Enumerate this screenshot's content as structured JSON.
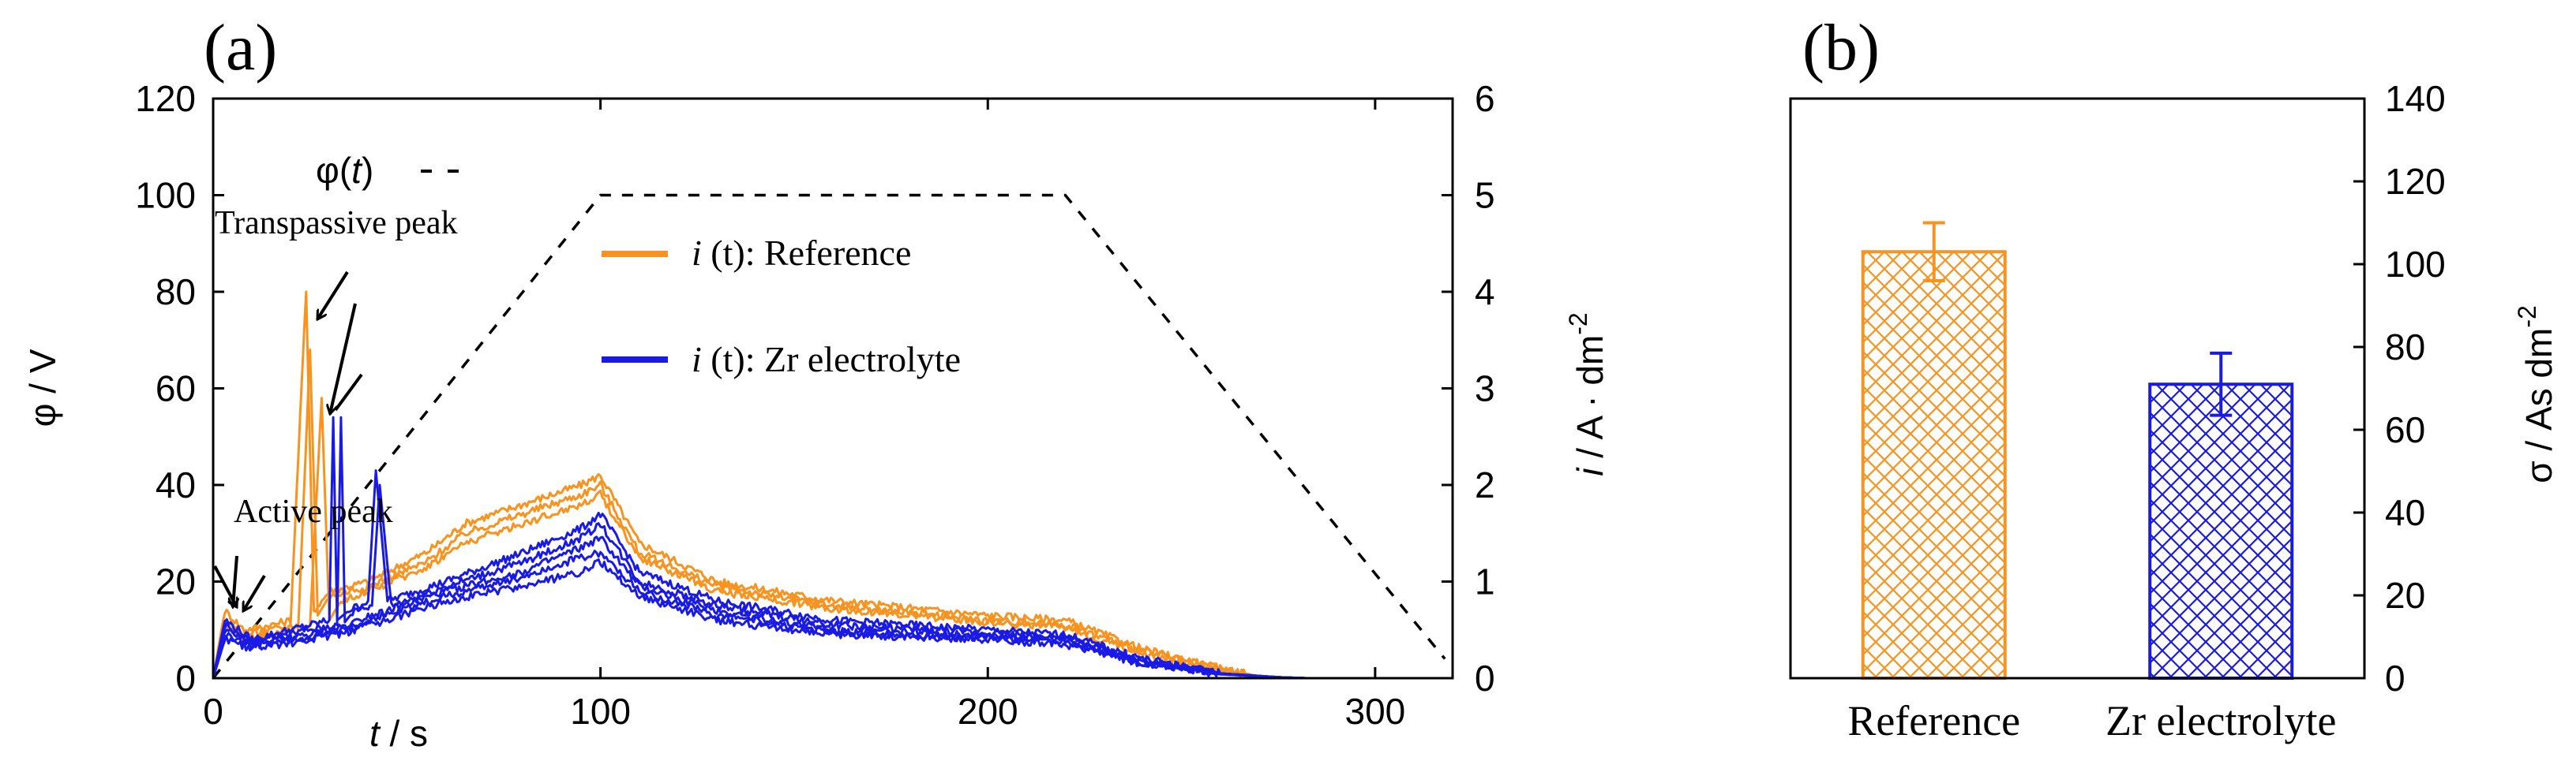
{
  "chart_data": [
    {
      "panel_label": "(a)",
      "type": "line",
      "xlabel_italic": "t",
      "xlabel_unit": " / s",
      "xlim": [
        0,
        320
      ],
      "xticks": [
        0,
        100,
        200,
        300
      ],
      "ylabel_left": "φ / V",
      "ylim_left": [
        0,
        120
      ],
      "yticks_left": [
        0,
        20,
        40,
        60,
        80,
        100,
        120
      ],
      "ylabel_right_italic": "i",
      "ylabel_right_unit": " / A · dm",
      "ylabel_right_exp": "-2",
      "ylim_right": [
        0,
        6
      ],
      "yticks_right": [
        0,
        1,
        2,
        3,
        4,
        5,
        6
      ],
      "legend": [
        {
          "label_prefix": "φ(",
          "label_italic": "t",
          "label_suffix": ")",
          "style": "dashed",
          "color": "#000000"
        },
        {
          "label_prefix": "i",
          "label_italic": " (t)",
          "label_suffix": ": Reference",
          "style": "solid",
          "color": "#F7931E"
        },
        {
          "label_prefix": "i",
          "label_italic": " (t)",
          "label_suffix": ": Zr electrolyte",
          "style": "solid",
          "color": "#1A1AE6"
        }
      ],
      "annotations": [
        "Transpassive peak",
        "Active peak"
      ],
      "series": [
        {
          "name": "φ(t)",
          "axis": "left",
          "style": "dashed",
          "color": "#000000",
          "x": [
            0,
            100,
            220,
            318
          ],
          "y": [
            0,
            100,
            100,
            4
          ]
        },
        {
          "name": "i (t): Reference",
          "axis": "right",
          "color": "#F7931E",
          "curves": [
            {
              "x": [
                0,
                3,
                8,
                15,
                20,
                24,
                26,
                30,
                40,
                55,
                65,
                80,
                95,
                100,
                110,
                130,
                160,
                200,
                220,
                240,
                260,
                270,
                280
              ],
              "y": [
                0,
                0.7,
                0.5,
                0.55,
                0.6,
                4.0,
                0.7,
                0.9,
                1.0,
                1.3,
                1.6,
                1.8,
                2.0,
                2.1,
                1.4,
                1.0,
                0.8,
                0.65,
                0.6,
                0.3,
                0.1,
                0.02,
                0
              ]
            },
            {
              "x": [
                0,
                3,
                8,
                15,
                22,
                25,
                27,
                30,
                40,
                55,
                65,
                80,
                95,
                100,
                110,
                130,
                160,
                200,
                220,
                240,
                260,
                270,
                280
              ],
              "y": [
                0,
                0.6,
                0.45,
                0.5,
                0.55,
                3.4,
                0.65,
                0.85,
                0.95,
                1.2,
                1.5,
                1.7,
                1.9,
                2.0,
                1.3,
                0.95,
                0.75,
                0.6,
                0.55,
                0.28,
                0.09,
                0.02,
                0
              ]
            },
            {
              "x": [
                0,
                3,
                8,
                15,
                25,
                28,
                30,
                33,
                40,
                55,
                65,
                80,
                95,
                100,
                110,
                130,
                160,
                200,
                220,
                240,
                260,
                270,
                280
              ],
              "y": [
                0,
                0.55,
                0.4,
                0.45,
                0.55,
                2.9,
                0.6,
                0.8,
                0.9,
                1.15,
                1.4,
                1.6,
                1.8,
                1.9,
                1.25,
                0.9,
                0.72,
                0.58,
                0.52,
                0.26,
                0.08,
                0.02,
                0
              ]
            }
          ]
        },
        {
          "name": "i (t): Zr electrolyte",
          "axis": "right",
          "color": "#1A1AE6",
          "curves": [
            {
              "x": [
                0,
                3,
                10,
                25,
                30,
                31,
                32,
                35,
                40,
                42,
                45,
                60,
                80,
                95,
                100,
                110,
                130,
                160,
                200,
                220,
                240,
                260,
                275,
                282
              ],
              "y": [
                0,
                0.6,
                0.4,
                0.55,
                0.6,
                2.7,
                0.6,
                0.7,
                0.8,
                2.15,
                0.8,
                1.0,
                1.3,
                1.55,
                1.7,
                1.1,
                0.8,
                0.6,
                0.5,
                0.45,
                0.2,
                0.05,
                0.01,
                0
              ]
            },
            {
              "x": [
                0,
                3,
                10,
                25,
                32,
                33,
                34,
                36,
                41,
                43,
                46,
                60,
                80,
                95,
                100,
                110,
                130,
                160,
                200,
                220,
                240,
                260,
                275,
                282
              ],
              "y": [
                0,
                0.55,
                0.38,
                0.5,
                0.55,
                2.7,
                0.58,
                0.68,
                0.75,
                2.0,
                0.75,
                0.95,
                1.2,
                1.45,
                1.6,
                1.0,
                0.75,
                0.55,
                0.47,
                0.42,
                0.18,
                0.05,
                0.01,
                0
              ]
            },
            {
              "x": [
                0,
                3,
                10,
                25,
                35,
                40,
                45,
                60,
                80,
                95,
                100,
                110,
                130,
                160,
                200,
                220,
                240,
                260,
                275,
                282
              ],
              "y": [
                0,
                0.5,
                0.35,
                0.45,
                0.55,
                0.65,
                0.7,
                0.9,
                1.1,
                1.35,
                1.45,
                0.95,
                0.7,
                0.5,
                0.45,
                0.4,
                0.17,
                0.05,
                0.01,
                0
              ]
            },
            {
              "x": [
                0,
                3,
                10,
                25,
                35,
                40,
                45,
                60,
                80,
                95,
                100,
                110,
                130,
                160,
                200,
                220,
                240,
                260,
                275,
                282
              ],
              "y": [
                0,
                0.45,
                0.33,
                0.42,
                0.5,
                0.6,
                0.66,
                0.85,
                1.05,
                1.25,
                1.3,
                0.9,
                0.65,
                0.48,
                0.42,
                0.38,
                0.16,
                0.04,
                0.01,
                0
              ]
            },
            {
              "x": [
                0,
                3,
                10,
                25,
                35,
                40,
                45,
                60,
                80,
                95,
                100,
                110,
                130,
                160,
                200,
                220,
                240,
                260,
                275,
                282
              ],
              "y": [
                0,
                0.4,
                0.3,
                0.4,
                0.48,
                0.55,
                0.6,
                0.8,
                0.95,
                1.1,
                1.2,
                0.85,
                0.6,
                0.45,
                0.4,
                0.35,
                0.15,
                0.04,
                0.01,
                0
              ]
            }
          ]
        }
      ]
    },
    {
      "panel_label": "(b)",
      "type": "bar",
      "categories": [
        "Reference",
        "Zr electrolyte"
      ],
      "values": [
        103,
        71
      ],
      "errors": [
        7,
        7.5
      ],
      "colors": [
        "#F7931E",
        "#1A1AE6"
      ],
      "fill_pattern": "crosshatch",
      "ylabel_prefix": "σ  / As dm",
      "ylabel_exp": "-2",
      "ylim": [
        0,
        140
      ],
      "yticks": [
        0,
        20,
        40,
        60,
        80,
        100,
        120,
        140
      ]
    }
  ]
}
